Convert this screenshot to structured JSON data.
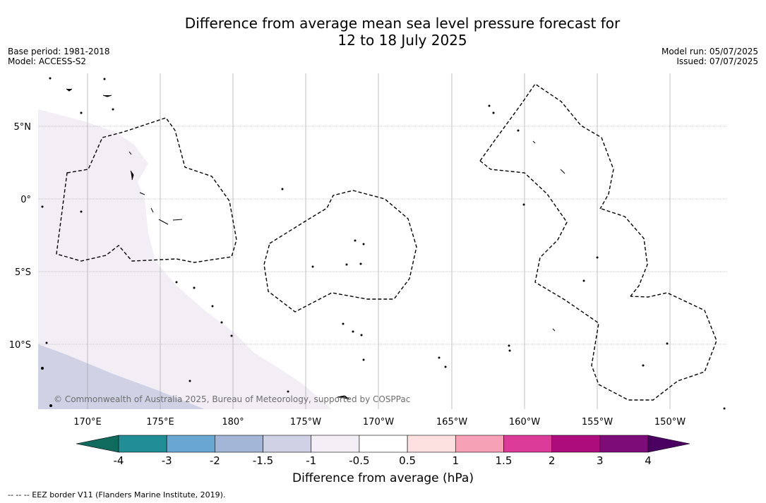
{
  "title": {
    "line1": "Difference from average mean sea level pressure forecast for",
    "line2": "12 to 18 July 2025"
  },
  "meta": {
    "base_period": "Base period: 1981-2018",
    "model": "Model: ACCESS-S2",
    "model_run": "Model run: 05/07/2025",
    "issued": "Issued: 07/07/2025"
  },
  "map": {
    "lat_labels": [
      "5°N",
      "0°",
      "5°S",
      "10°S"
    ],
    "lon_labels": [
      "170°E",
      "175°E",
      "180°",
      "175°W",
      "170°W",
      "165°W",
      "160°W",
      "155°W",
      "150°W"
    ],
    "copyright": "© Commonwealth of Australia 2025, Bureau of Meteorology, supported by COSPPac",
    "fill_colors": {
      "minus_1_5_to_minus_1": "#cfd1e5",
      "minus_1_to_minus_0_5": "#f3eef6"
    }
  },
  "colorbar": {
    "ticks": [
      "-4",
      "-3",
      "-2",
      "-1.5",
      "-1",
      "-0.5",
      "0.5",
      "1",
      "1.5",
      "2",
      "3",
      "4"
    ],
    "colors": [
      "#0e6b5e",
      "#218e95",
      "#6aa6d2",
      "#a4b6d8",
      "#cfd1e5",
      "#f3eef6",
      "#ffffff",
      "#fde0e0",
      "#f7a1b6",
      "#dc3b9a",
      "#ad0c7d",
      "#7d0c78",
      "#4a0060"
    ],
    "title": "Difference from average (hPa)"
  },
  "footer": "--  --  -- EEZ border V11 (Flanders Marine Institute, 2019)."
}
